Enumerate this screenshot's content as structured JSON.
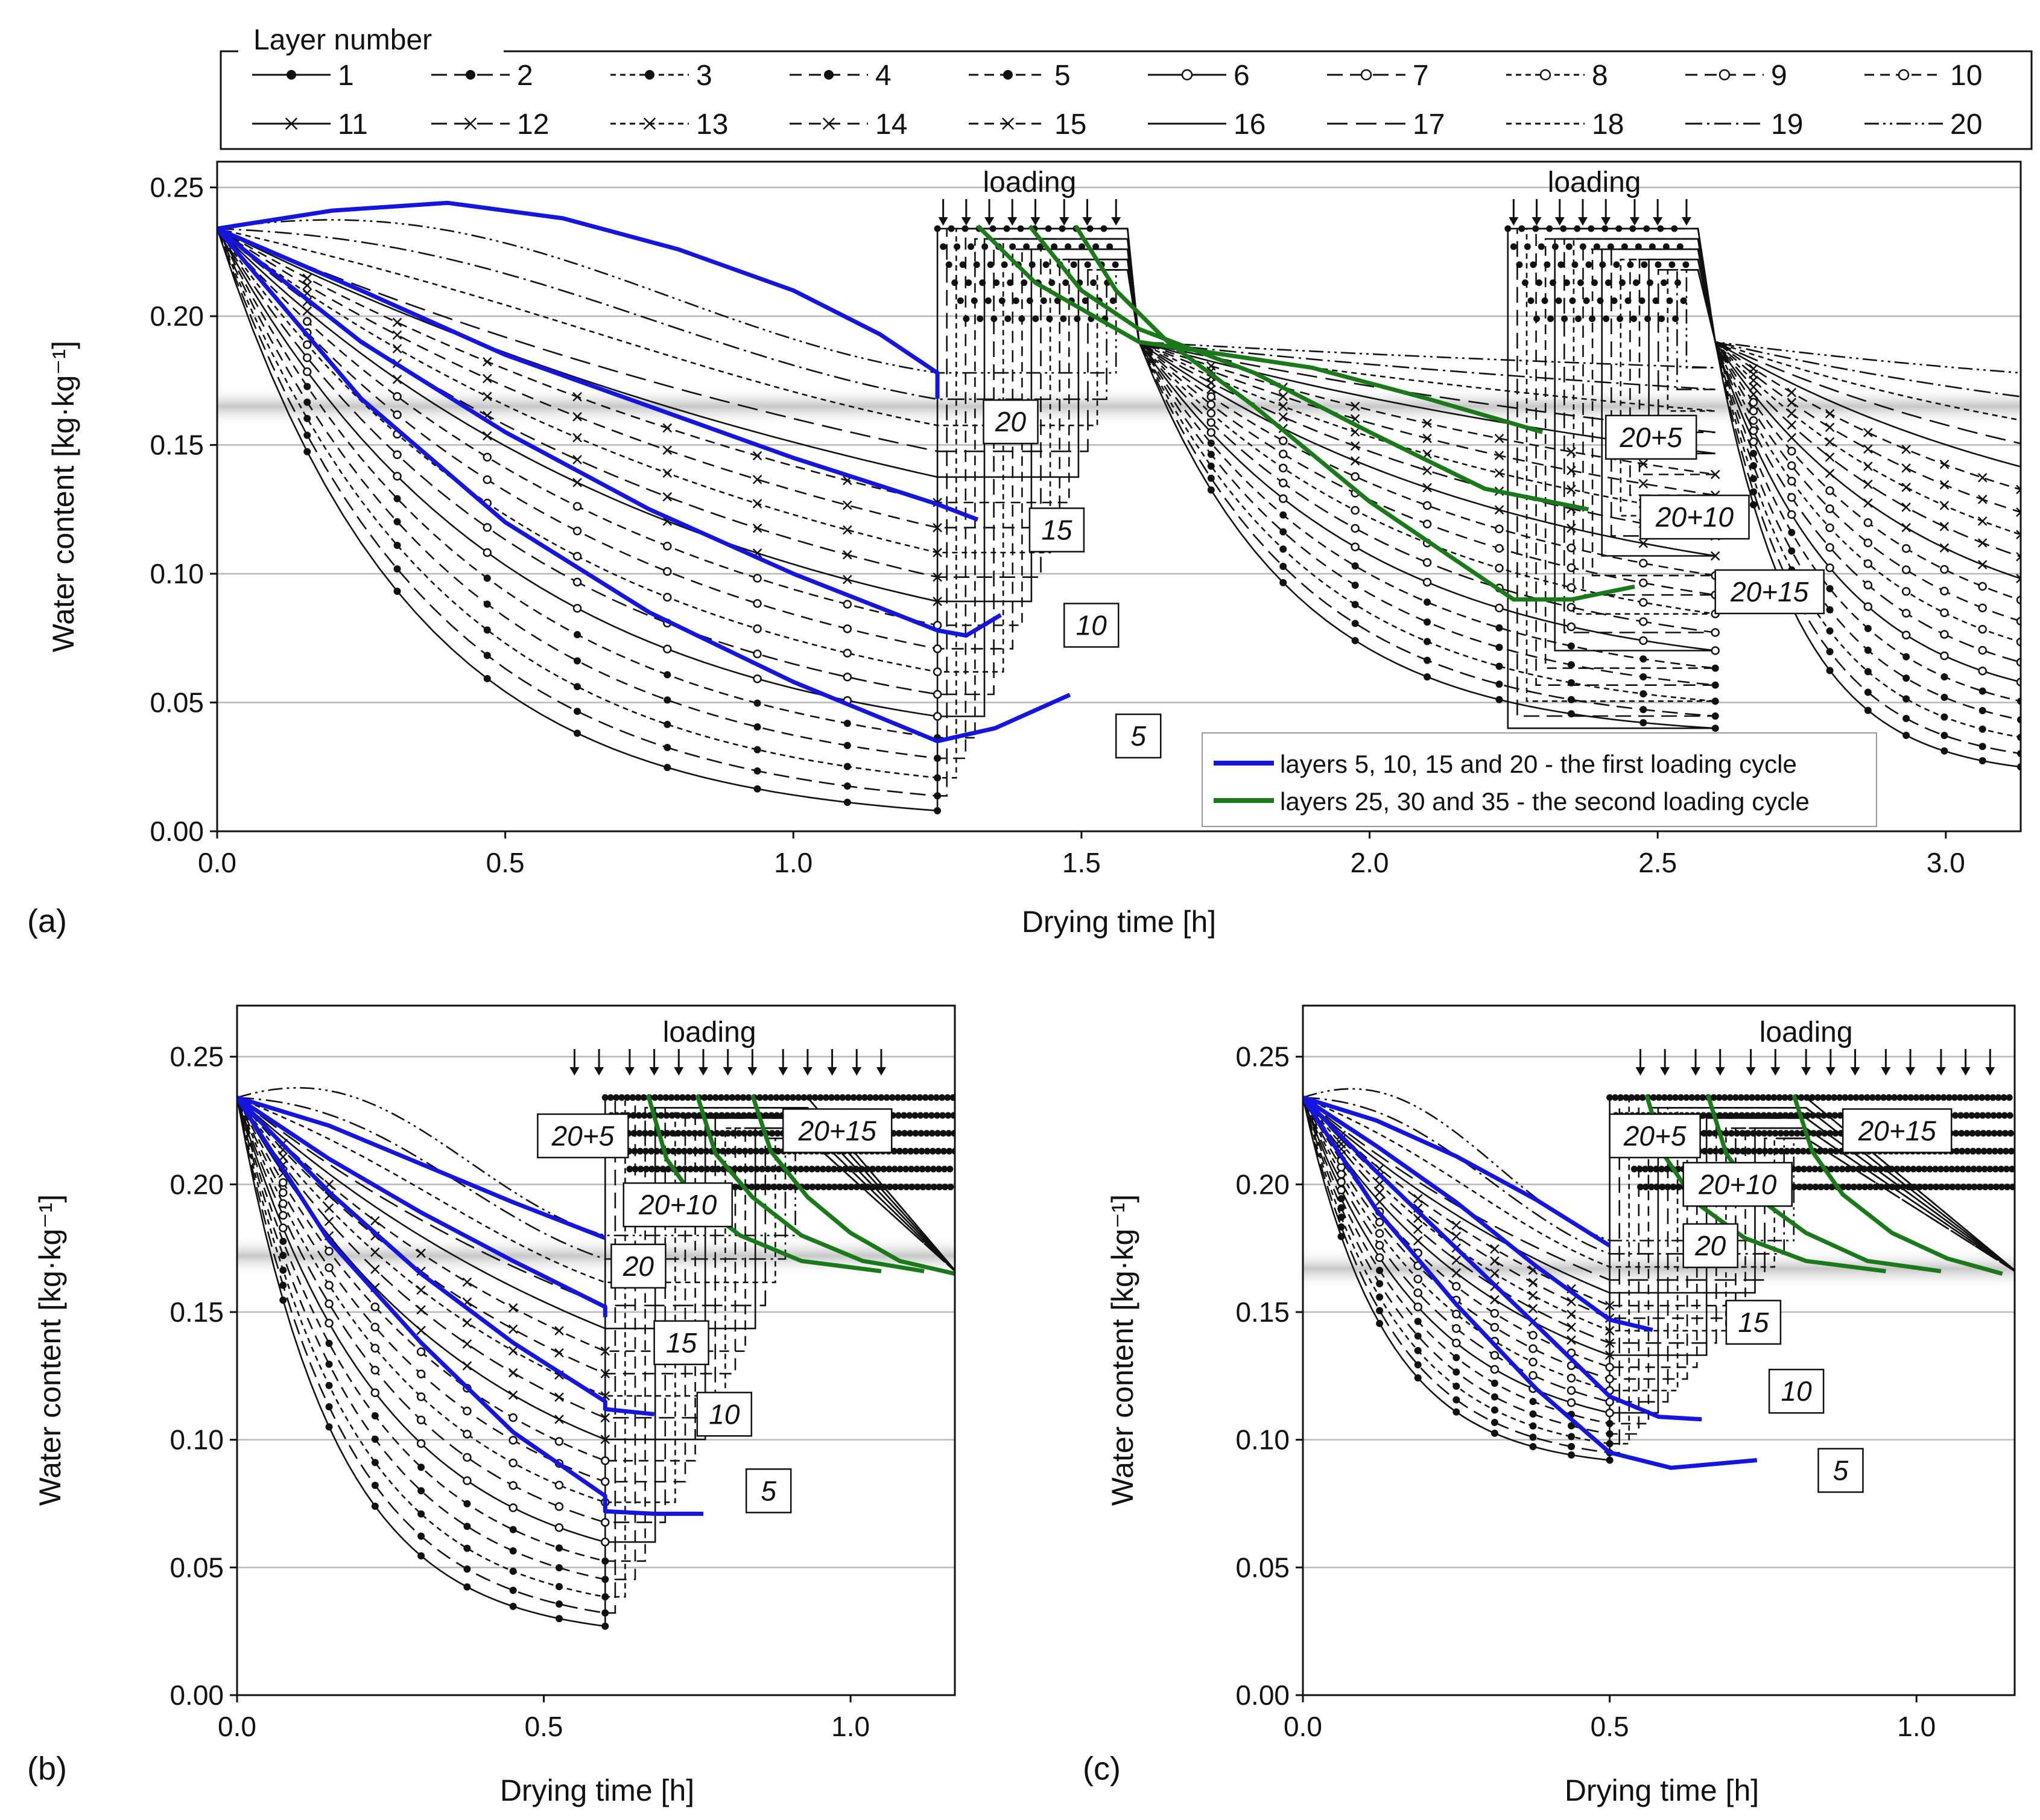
{
  "legend": {
    "title": "Layer number",
    "entries": [
      "1",
      "2",
      "3",
      "4",
      "5",
      "6",
      "7",
      "8",
      "9",
      "10",
      "11",
      "12",
      "13",
      "14",
      "15",
      "16",
      "17",
      "18",
      "19",
      "20"
    ]
  },
  "annotation_legend": {
    "blue_label": "layers 5, 10, 15 and 20 - the first loading cycle",
    "green_label": "layers 25, 30 and 35 - the second loading cycle",
    "blue_color": "#1515e0",
    "green_color": "#1a7a1a"
  },
  "colors": {
    "grid": "#b8b8b8",
    "band": "#c8c8c8",
    "ink": "#111111"
  },
  "chart_data": [
    {
      "id": "a",
      "panel_label": "(a)",
      "type": "line",
      "xlabel": "Drying time [h]",
      "ylabel": "Water content [kg·kg⁻¹]",
      "xlim": [
        0,
        3.13
      ],
      "ylim": [
        0,
        0.26
      ],
      "xticks": [
        0,
        0.5,
        1,
        1.5,
        2,
        2.5,
        3
      ],
      "xtick_labels": [
        "0.0",
        "0.5",
        "1.0",
        "1.5",
        "2.0",
        "2.5",
        "3.0"
      ],
      "yticks": [
        0,
        0.05,
        0.1,
        0.15,
        0.2,
        0.25
      ],
      "ytick_labels": [
        "0.00",
        "0.05",
        "0.10",
        "0.15",
        "0.20",
        "0.25"
      ],
      "band_y": 0.165,
      "loading_label": "loading",
      "loading_windows": [
        {
          "t0": 1.25,
          "t1": 1.56,
          "label_x": 1.41,
          "arrows": [
            1.26,
            1.3,
            1.34,
            1.38,
            1.42,
            1.47,
            1.51,
            1.56
          ]
        },
        {
          "t0": 2.24,
          "t1": 2.55,
          "label_x": 2.39,
          "arrows": [
            2.25,
            2.29,
            2.33,
            2.37,
            2.41,
            2.46,
            2.5,
            2.55
          ]
        }
      ],
      "cycles": [
        {
          "t0": 0,
          "period": 1.25,
          "w_min": 0.008,
          "w_max": 0.178
        },
        {
          "t0": 1.6,
          "period": 1.25,
          "w_min": 0.04,
          "w_max": 0.18
        },
        {
          "t0": 2.6,
          "period": 1.25,
          "w_min": 0.025,
          "w_max": 0.178
        }
      ],
      "initial_w": 0.234,
      "end_t": 3.13,
      "blue_series": [
        {
          "layer": "5",
          "label": "5",
          "points": [
            [
              0,
              0.234
            ],
            [
              0.25,
              0.168
            ],
            [
              0.5,
              0.12
            ],
            [
              0.75,
              0.085
            ],
            [
              1.0,
              0.058
            ],
            [
              1.25,
              0.035
            ],
            [
              1.35,
              0.04
            ],
            [
              1.48,
              0.053
            ]
          ]
        },
        {
          "layer": "10",
          "label": "10",
          "points": [
            [
              0,
              0.234
            ],
            [
              0.25,
              0.19
            ],
            [
              0.5,
              0.155
            ],
            [
              0.75,
              0.125
            ],
            [
              1.0,
              0.1
            ],
            [
              1.25,
              0.078
            ],
            [
              1.3,
              0.076
            ],
            [
              1.36,
              0.084
            ]
          ]
        },
        {
          "layer": "15",
          "label": "15",
          "points": [
            [
              0,
              0.234
            ],
            [
              0.25,
              0.21
            ],
            [
              0.5,
              0.185
            ],
            [
              0.75,
              0.165
            ],
            [
              1.0,
              0.145
            ],
            [
              1.25,
              0.127
            ],
            [
              1.32,
              0.121
            ]
          ]
        },
        {
          "layer": "20",
          "label": "20",
          "points": [
            [
              0,
              0.234
            ],
            [
              0.2,
              0.241
            ],
            [
              0.4,
              0.244
            ],
            [
              0.6,
              0.238
            ],
            [
              0.8,
              0.226
            ],
            [
              1.0,
              0.21
            ],
            [
              1.15,
              0.193
            ],
            [
              1.25,
              0.178
            ],
            [
              1.25,
              0.168
            ]
          ]
        }
      ],
      "green_series": [
        {
          "label": "20+5",
          "points": [
            [
              1.32,
              0.235
            ],
            [
              1.42,
              0.213
            ],
            [
              1.6,
              0.19
            ],
            [
              1.9,
              0.18
            ],
            [
              2.1,
              0.168
            ],
            [
              2.3,
              0.155
            ]
          ]
        },
        {
          "label": "20+10",
          "points": [
            [
              1.41,
              0.235
            ],
            [
              1.5,
              0.21
            ],
            [
              1.6,
              0.195
            ],
            [
              1.8,
              0.178
            ],
            [
              2.0,
              0.155
            ],
            [
              2.2,
              0.133
            ],
            [
              2.38,
              0.125
            ]
          ]
        },
        {
          "label": "20+15",
          "points": [
            [
              1.49,
              0.235
            ],
            [
              1.56,
              0.21
            ],
            [
              1.65,
              0.19
            ],
            [
              1.8,
              0.165
            ],
            [
              2.0,
              0.128
            ],
            [
              2.25,
              0.09
            ],
            [
              2.35,
              0.09
            ],
            [
              2.46,
              0.095
            ]
          ]
        }
      ],
      "tags": [
        {
          "text": "20",
          "x": 1.33,
          "y": 0.159
        },
        {
          "text": "15",
          "x": 1.41,
          "y": 0.117
        },
        {
          "text": "10",
          "x": 1.47,
          "y": 0.08
        },
        {
          "text": "5",
          "x": 1.56,
          "y": 0.037
        },
        {
          "text": "20+5",
          "x": 2.41,
          "y": 0.153
        },
        {
          "text": "20+10",
          "x": 2.47,
          "y": 0.122
        },
        {
          "text": "20+15",
          "x": 2.6,
          "y": 0.093
        }
      ]
    },
    {
      "id": "b",
      "panel_label": "(b)",
      "type": "line",
      "xlabel": "Drying time [h]",
      "ylabel": "Water content [kg·kg⁻¹]",
      "xlim": [
        0,
        1.17
      ],
      "ylim": [
        0,
        0.27
      ],
      "xticks": [
        0,
        0.5,
        1
      ],
      "xtick_labels": [
        "0.0",
        "0.5",
        "1.0"
      ],
      "yticks": [
        0,
        0.05,
        0.1,
        0.15,
        0.2,
        0.25
      ],
      "ytick_labels": [
        "0.00",
        "0.05",
        "0.10",
        "0.15",
        "0.20",
        "0.25"
      ],
      "band_y": 0.172,
      "loading_label": "loading",
      "loading_windows": [
        {
          "t0": 0.6,
          "t1": 0.91,
          "label_x": 0.77,
          "arrows": [
            0.55,
            0.59,
            0.64,
            0.68,
            0.72,
            0.76,
            0.8,
            0.84,
            0.89,
            0.93,
            0.97,
            1.01,
            1.05
          ]
        }
      ],
      "cycles": [
        {
          "t0": 0,
          "period": 0.6,
          "w_min": 0.027,
          "w_max": 0.18
        }
      ],
      "initial_w": 0.234,
      "end_t": 1.17,
      "plateau": {
        "t0": 0.62,
        "t1": 1.17,
        "w_top": 0.234,
        "w_bottom": 0.165
      },
      "blue_series": [
        {
          "layer": "5",
          "label": "5",
          "points": [
            [
              0,
              0.234
            ],
            [
              0.15,
              0.178
            ],
            [
              0.3,
              0.138
            ],
            [
              0.45,
              0.103
            ],
            [
              0.6,
              0.078
            ],
            [
              0.6,
              0.072
            ],
            [
              0.68,
              0.071
            ],
            [
              0.76,
              0.071
            ]
          ]
        },
        {
          "layer": "10",
          "label": "10",
          "points": [
            [
              0,
              0.234
            ],
            [
              0.15,
              0.197
            ],
            [
              0.3,
              0.165
            ],
            [
              0.45,
              0.138
            ],
            [
              0.6,
              0.115
            ],
            [
              0.6,
              0.112
            ],
            [
              0.68,
              0.11
            ]
          ]
        },
        {
          "layer": "15",
          "label": "15",
          "points": [
            [
              0,
              0.234
            ],
            [
              0.15,
              0.21
            ],
            [
              0.3,
              0.189
            ],
            [
              0.45,
              0.17
            ],
            [
              0.6,
              0.152
            ],
            [
              0.6,
              0.148
            ]
          ]
        },
        {
          "layer": "20",
          "label": "20",
          "points": [
            [
              0,
              0.234
            ],
            [
              0.15,
              0.223
            ],
            [
              0.3,
              0.208
            ],
            [
              0.45,
              0.193
            ],
            [
              0.6,
              0.179
            ]
          ]
        }
      ],
      "green_series": [
        {
          "label": "20+5",
          "points": [
            [
              0.67,
              0.235
            ],
            [
              0.7,
              0.21
            ],
            [
              0.75,
              0.193
            ],
            [
              0.82,
              0.18
            ],
            [
              0.92,
              0.17
            ],
            [
              1.05,
              0.166
            ]
          ]
        },
        {
          "label": "20+10",
          "points": [
            [
              0.75,
              0.235
            ],
            [
              0.78,
              0.212
            ],
            [
              0.84,
              0.195
            ],
            [
              0.92,
              0.18
            ],
            [
              1.02,
              0.17
            ],
            [
              1.12,
              0.166
            ]
          ]
        },
        {
          "label": "20+15",
          "points": [
            [
              0.84,
              0.235
            ],
            [
              0.87,
              0.213
            ],
            [
              0.93,
              0.195
            ],
            [
              1.0,
              0.181
            ],
            [
              1.08,
              0.17
            ],
            [
              1.17,
              0.165
            ]
          ]
        }
      ],
      "tags": [
        {
          "text": "20+5",
          "x": 0.49,
          "y": 0.219
        },
        {
          "text": "15",
          "x": 0.68,
          "y": 0.138
        },
        {
          "text": "20+15",
          "x": 0.89,
          "y": 0.221
        },
        {
          "text": "20+10",
          "x": 0.63,
          "y": 0.192
        },
        {
          "text": "20",
          "x": 0.61,
          "y": 0.168
        },
        {
          "text": "10",
          "x": 0.75,
          "y": 0.11
        },
        {
          "text": "5",
          "x": 0.83,
          "y": 0.08
        }
      ]
    },
    {
      "id": "c",
      "panel_label": "(c)",
      "type": "line",
      "xlabel": "Drying time [h]",
      "ylabel": "Water content [kg·kg⁻¹]",
      "xlim": [
        0,
        1.16
      ],
      "ylim": [
        0,
        0.27
      ],
      "xticks": [
        0,
        0.5,
        1
      ],
      "xtick_labels": [
        "0.0",
        "0.5",
        "1.0"
      ],
      "yticks": [
        0,
        0.05,
        0.1,
        0.15,
        0.2,
        0.25
      ],
      "ytick_labels": [
        "0.00",
        "0.05",
        "0.10",
        "0.15",
        "0.20",
        "0.25"
      ],
      "band_y": 0.167,
      "loading_label": "loading",
      "loading_windows": [
        {
          "t0": 0.5,
          "t1": 0.8,
          "label_x": 0.82,
          "arrows": [
            0.55,
            0.59,
            0.64,
            0.68,
            0.73,
            0.77,
            0.82,
            0.86,
            0.9,
            0.95,
            0.99,
            1.04,
            1.08,
            1.12
          ]
        }
      ],
      "cycles": [
        {
          "t0": 0,
          "period": 0.5,
          "w_min": 0.092,
          "w_max": 0.178
        }
      ],
      "initial_w": 0.234,
      "end_t": 1.16,
      "plateau": {
        "t0": 0.5,
        "t1": 1.16,
        "w_top": 0.234,
        "w_bottom": 0.165
      },
      "blue_series": [
        {
          "layer": "5",
          "label": "5",
          "points": [
            [
              0,
              0.234
            ],
            [
              0.12,
              0.19
            ],
            [
              0.25,
              0.153
            ],
            [
              0.38,
              0.12
            ],
            [
              0.5,
              0.095
            ],
            [
              0.6,
              0.089
            ],
            [
              0.74,
              0.092
            ]
          ]
        },
        {
          "layer": "10",
          "label": "10",
          "points": [
            [
              0,
              0.234
            ],
            [
              0.12,
              0.205
            ],
            [
              0.25,
              0.175
            ],
            [
              0.38,
              0.145
            ],
            [
              0.5,
              0.117
            ],
            [
              0.58,
              0.109
            ],
            [
              0.65,
              0.108
            ]
          ]
        },
        {
          "layer": "15",
          "label": "15",
          "points": [
            [
              0,
              0.234
            ],
            [
              0.12,
              0.215
            ],
            [
              0.25,
              0.193
            ],
            [
              0.38,
              0.168
            ],
            [
              0.5,
              0.147
            ],
            [
              0.57,
              0.143
            ]
          ]
        },
        {
          "layer": "20",
          "label": "20",
          "points": [
            [
              0,
              0.234
            ],
            [
              0.12,
              0.225
            ],
            [
              0.25,
              0.211
            ],
            [
              0.38,
              0.194
            ],
            [
              0.5,
              0.176
            ]
          ]
        }
      ],
      "green_series": [
        {
          "label": "20+5",
          "points": [
            [
              0.56,
              0.235
            ],
            [
              0.59,
              0.211
            ],
            [
              0.64,
              0.193
            ],
            [
              0.72,
              0.179
            ],
            [
              0.82,
              0.17
            ],
            [
              0.95,
              0.166
            ]
          ]
        },
        {
          "label": "20+10",
          "points": [
            [
              0.66,
              0.235
            ],
            [
              0.69,
              0.212
            ],
            [
              0.74,
              0.195
            ],
            [
              0.82,
              0.181
            ],
            [
              0.92,
              0.17
            ],
            [
              1.04,
              0.166
            ]
          ]
        },
        {
          "label": "20+15",
          "points": [
            [
              0.8,
              0.235
            ],
            [
              0.83,
              0.213
            ],
            [
              0.88,
              0.196
            ],
            [
              0.96,
              0.181
            ],
            [
              1.05,
              0.171
            ],
            [
              1.14,
              0.165
            ]
          ]
        }
      ],
      "tags": [
        {
          "text": "20+5",
          "x": 0.5,
          "y": 0.219
        },
        {
          "text": "20+10",
          "x": 0.62,
          "y": 0.2
        },
        {
          "text": "20",
          "x": 0.62,
          "y": 0.176
        },
        {
          "text": "20+15",
          "x": 0.88,
          "y": 0.221
        },
        {
          "text": "15",
          "x": 0.69,
          "y": 0.146
        },
        {
          "text": "10",
          "x": 0.76,
          "y": 0.119
        },
        {
          "text": "5",
          "x": 0.84,
          "y": 0.088
        }
      ]
    }
  ]
}
